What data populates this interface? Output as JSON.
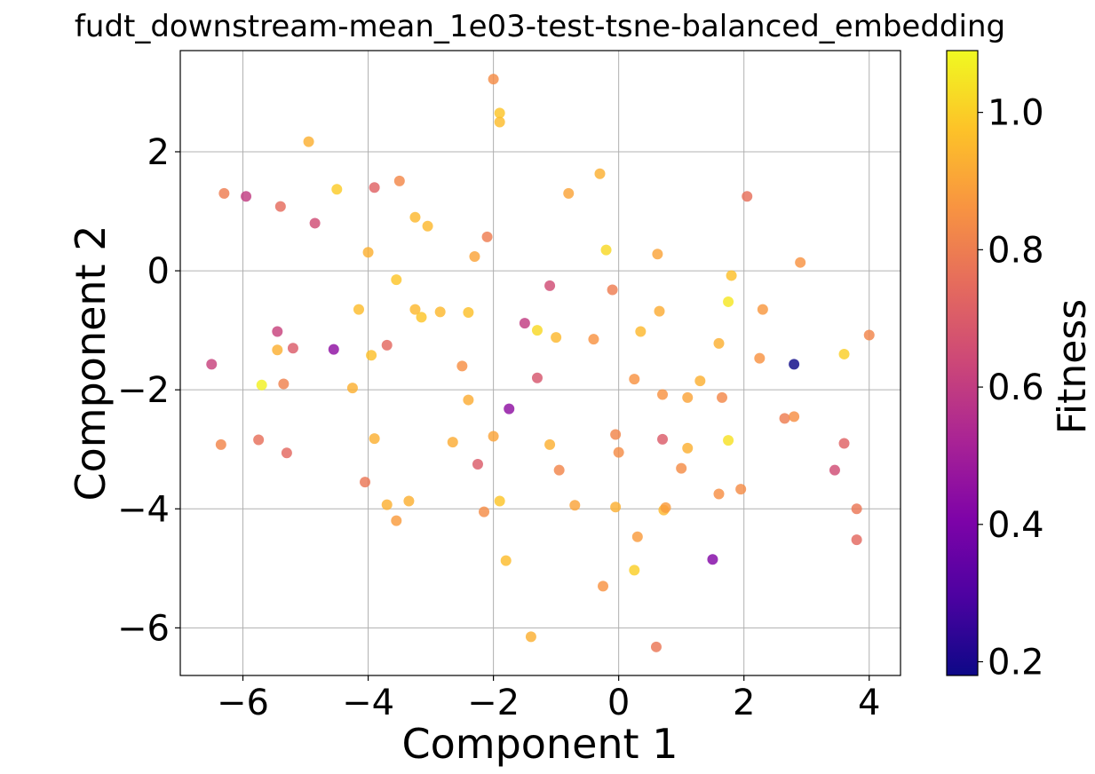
{
  "chart_data": {
    "type": "scatter",
    "title": "fudt_downstream-mean_1e03-test-tsne-balanced_embedding",
    "xlabel": "Component 1",
    "ylabel": "Component 2",
    "xlim": [
      -7.0,
      4.5
    ],
    "ylim": [
      -6.8,
      3.7
    ],
    "xticks": [
      -6,
      -4,
      -2,
      0,
      2,
      4
    ],
    "yticks": [
      -6,
      -4,
      -2,
      0,
      2
    ],
    "xtick_labels": [
      "−6",
      "−4",
      "−2",
      "0",
      "2",
      "4"
    ],
    "ytick_labels": [
      "−6",
      "−4",
      "−2",
      "0",
      "2"
    ],
    "grid": true,
    "colormap": "plasma",
    "colorbar": {
      "label": "Fitness",
      "min": 0.18,
      "max": 1.09,
      "ticks": [
        0.2,
        0.4,
        0.6,
        0.8,
        1.0
      ],
      "tick_labels": [
        "0.2",
        "0.4",
        "0.6",
        "0.8",
        "1.0"
      ]
    },
    "points": [
      {
        "x": -2.0,
        "y": 3.22,
        "c": 0.84
      },
      {
        "x": -1.9,
        "y": 2.65,
        "c": 0.98
      },
      {
        "x": -1.9,
        "y": 2.5,
        "c": 0.96
      },
      {
        "x": -4.95,
        "y": 2.17,
        "c": 0.93
      },
      {
        "x": -0.3,
        "y": 1.63,
        "c": 0.93
      },
      {
        "x": -6.3,
        "y": 1.3,
        "c": 0.8
      },
      {
        "x": -5.95,
        "y": 1.25,
        "c": 0.6
      },
      {
        "x": -5.4,
        "y": 1.08,
        "c": 0.75
      },
      {
        "x": -4.5,
        "y": 1.37,
        "c": 0.99
      },
      {
        "x": -3.9,
        "y": 1.4,
        "c": 0.72
      },
      {
        "x": -3.5,
        "y": 1.51,
        "c": 0.83
      },
      {
        "x": -0.8,
        "y": 1.3,
        "c": 0.9
      },
      {
        "x": 2.05,
        "y": 1.25,
        "c": 0.76
      },
      {
        "x": -4.85,
        "y": 0.8,
        "c": 0.65
      },
      {
        "x": -3.25,
        "y": 0.9,
        "c": 0.95
      },
      {
        "x": -3.05,
        "y": 0.75,
        "c": 0.95
      },
      {
        "x": -2.1,
        "y": 0.57,
        "c": 0.8
      },
      {
        "x": -2.3,
        "y": 0.24,
        "c": 0.9
      },
      {
        "x": -4.0,
        "y": 0.31,
        "c": 0.93
      },
      {
        "x": -0.2,
        "y": 0.35,
        "c": 1.02
      },
      {
        "x": 0.62,
        "y": 0.28,
        "c": 0.9
      },
      {
        "x": 2.9,
        "y": 0.14,
        "c": 0.86
      },
      {
        "x": 1.8,
        "y": -0.08,
        "c": 0.97
      },
      {
        "x": -3.55,
        "y": -0.15,
        "c": 0.98
      },
      {
        "x": -1.1,
        "y": -0.25,
        "c": 0.65
      },
      {
        "x": -0.1,
        "y": -0.32,
        "c": 0.8
      },
      {
        "x": -4.15,
        "y": -0.65,
        "c": 0.96
      },
      {
        "x": -3.25,
        "y": -0.65,
        "c": 0.95
      },
      {
        "x": -3.15,
        "y": -0.78,
        "c": 0.98
      },
      {
        "x": -2.85,
        "y": -0.69,
        "c": 0.95
      },
      {
        "x": -2.4,
        "y": -0.7,
        "c": 0.97
      },
      {
        "x": 0.65,
        "y": -0.68,
        "c": 0.92
      },
      {
        "x": 1.75,
        "y": -0.52,
        "c": 1.05
      },
      {
        "x": 2.3,
        "y": -0.65,
        "c": 0.87
      },
      {
        "x": -5.45,
        "y": -1.02,
        "c": 0.62
      },
      {
        "x": -1.5,
        "y": -0.88,
        "c": 0.6
      },
      {
        "x": -1.3,
        "y": -1.0,
        "c": 1.02
      },
      {
        "x": -1.0,
        "y": -1.12,
        "c": 0.95
      },
      {
        "x": -0.4,
        "y": -1.15,
        "c": 0.86
      },
      {
        "x": 0.35,
        "y": -1.02,
        "c": 0.95
      },
      {
        "x": 1.6,
        "y": -1.22,
        "c": 0.93
      },
      {
        "x": 4.0,
        "y": -1.08,
        "c": 0.82
      },
      {
        "x": -6.5,
        "y": -1.57,
        "c": 0.62
      },
      {
        "x": -5.45,
        "y": -1.33,
        "c": 0.93
      },
      {
        "x": -5.2,
        "y": -1.3,
        "c": 0.7
      },
      {
        "x": -4.55,
        "y": -1.32,
        "c": 0.45
      },
      {
        "x": -3.7,
        "y": -1.25,
        "c": 0.74
      },
      {
        "x": -3.95,
        "y": -1.42,
        "c": 0.97
      },
      {
        "x": -2.5,
        "y": -1.6,
        "c": 0.85
      },
      {
        "x": 2.25,
        "y": -1.47,
        "c": 0.86
      },
      {
        "x": 2.8,
        "y": -1.57,
        "c": 0.18
      },
      {
        "x": 3.6,
        "y": -1.4,
        "c": 1.0
      },
      {
        "x": -5.7,
        "y": -1.92,
        "c": 1.07
      },
      {
        "x": -5.35,
        "y": -1.9,
        "c": 0.81
      },
      {
        "x": -4.25,
        "y": -1.97,
        "c": 0.93
      },
      {
        "x": -1.3,
        "y": -1.8,
        "c": 0.68
      },
      {
        "x": 0.25,
        "y": -1.82,
        "c": 0.86
      },
      {
        "x": 1.3,
        "y": -1.85,
        "c": 0.93
      },
      {
        "x": -2.4,
        "y": -2.17,
        "c": 0.92
      },
      {
        "x": 0.7,
        "y": -2.08,
        "c": 0.86
      },
      {
        "x": 1.1,
        "y": -2.13,
        "c": 0.9
      },
      {
        "x": 1.65,
        "y": -2.13,
        "c": 0.83
      },
      {
        "x": -1.75,
        "y": -2.32,
        "c": 0.45
      },
      {
        "x": 2.65,
        "y": -2.48,
        "c": 0.8
      },
      {
        "x": 2.8,
        "y": -2.45,
        "c": 0.85
      },
      {
        "x": -6.35,
        "y": -2.92,
        "c": 0.82
      },
      {
        "x": -5.75,
        "y": -2.84,
        "c": 0.76
      },
      {
        "x": -5.3,
        "y": -3.06,
        "c": 0.74
      },
      {
        "x": -3.9,
        "y": -2.82,
        "c": 0.93
      },
      {
        "x": -2.65,
        "y": -2.88,
        "c": 0.92
      },
      {
        "x": -2.0,
        "y": -2.78,
        "c": 0.9
      },
      {
        "x": -1.1,
        "y": -2.92,
        "c": 0.93
      },
      {
        "x": -0.05,
        "y": -2.75,
        "c": 0.82
      },
      {
        "x": 0.0,
        "y": -3.05,
        "c": 0.84
      },
      {
        "x": 0.7,
        "y": -2.83,
        "c": 0.7
      },
      {
        "x": 1.1,
        "y": -2.98,
        "c": 0.93
      },
      {
        "x": 1.75,
        "y": -2.85,
        "c": 1.04
      },
      {
        "x": 3.6,
        "y": -2.9,
        "c": 0.72
      },
      {
        "x": -2.25,
        "y": -3.25,
        "c": 0.7
      },
      {
        "x": -0.95,
        "y": -3.35,
        "c": 0.82
      },
      {
        "x": 1.0,
        "y": -3.32,
        "c": 0.84
      },
      {
        "x": 3.45,
        "y": -3.35,
        "c": 0.65
      },
      {
        "x": -4.05,
        "y": -3.55,
        "c": 0.78
      },
      {
        "x": 1.6,
        "y": -3.75,
        "c": 0.85
      },
      {
        "x": 1.95,
        "y": -3.67,
        "c": 0.84
      },
      {
        "x": -3.7,
        "y": -3.93,
        "c": 0.93
      },
      {
        "x": -3.35,
        "y": -3.87,
        "c": 0.93
      },
      {
        "x": -1.9,
        "y": -3.87,
        "c": 0.98
      },
      {
        "x": -0.7,
        "y": -3.94,
        "c": 0.9
      },
      {
        "x": -0.05,
        "y": -3.97,
        "c": 0.93
      },
      {
        "x": 0.72,
        "y": -4.02,
        "c": 0.95
      },
      {
        "x": 0.75,
        "y": -3.98,
        "c": 0.88
      },
      {
        "x": -3.55,
        "y": -4.2,
        "c": 0.88
      },
      {
        "x": -2.15,
        "y": -4.05,
        "c": 0.84
      },
      {
        "x": 3.8,
        "y": -4.0,
        "c": 0.78
      },
      {
        "x": 0.3,
        "y": -4.47,
        "c": 0.88
      },
      {
        "x": 3.8,
        "y": -4.52,
        "c": 0.74
      },
      {
        "x": -1.8,
        "y": -4.87,
        "c": 0.96
      },
      {
        "x": 1.5,
        "y": -4.85,
        "c": 0.42
      },
      {
        "x": -0.25,
        "y": -5.3,
        "c": 0.86
      },
      {
        "x": 0.25,
        "y": -5.03,
        "c": 1.0
      },
      {
        "x": -1.4,
        "y": -6.15,
        "c": 0.93
      },
      {
        "x": 0.6,
        "y": -6.32,
        "c": 0.78
      }
    ]
  }
}
